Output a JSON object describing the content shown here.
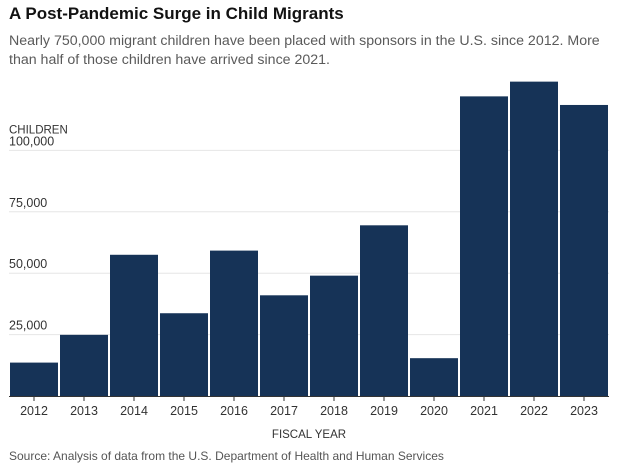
{
  "header": {
    "title": "A Post-Pandemic Surge in Child Migrants",
    "subtitle": "Nearly 750,000 migrant children have been placed with sponsors in the U.S. since 2012. More than half of those children have arrived since 2021."
  },
  "source": "Source: Analysis of data from the U.S. Department of Health and Human Services",
  "colors": {
    "bar": "#163357",
    "gridline": "#e6e6e6",
    "axis": "#333333"
  },
  "chart_data": {
    "type": "bar",
    "title": "A Post-Pandemic Surge in Child Migrants",
    "xlabel": "FISCAL YEAR",
    "ylabel": "CHILDREN",
    "categories": [
      "2012",
      "2013",
      "2014",
      "2015",
      "2016",
      "2017",
      "2018",
      "2019",
      "2020",
      "2021",
      "2022",
      "2023"
    ],
    "series": [
      {
        "values": [
          13600,
          24900,
          57500,
          33700,
          59200,
          41000,
          49000,
          69500,
          15400,
          122000,
          128000,
          118500
        ]
      }
    ],
    "yticks": [
      25000,
      50000,
      75000,
      100000
    ],
    "ytick_labels": [
      "25,000",
      "50,000",
      "75,000",
      "100,000"
    ],
    "ylim": [
      0,
      130000
    ],
    "grid": true,
    "legend": "none"
  }
}
